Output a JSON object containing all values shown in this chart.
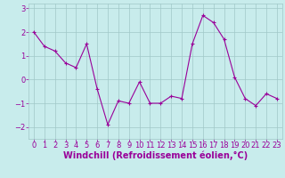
{
  "x": [
    0,
    1,
    2,
    3,
    4,
    5,
    6,
    7,
    8,
    9,
    10,
    11,
    12,
    13,
    14,
    15,
    16,
    17,
    18,
    19,
    20,
    21,
    22,
    23
  ],
  "y": [
    2.0,
    1.4,
    1.2,
    0.7,
    0.5,
    1.5,
    -0.4,
    -1.9,
    -0.9,
    -1.0,
    -0.1,
    -1.0,
    -1.0,
    -0.7,
    -0.8,
    1.5,
    2.7,
    2.4,
    1.7,
    0.1,
    -0.8,
    -1.1,
    -0.6,
    -0.8
  ],
  "line_color": "#990099",
  "marker": "+",
  "marker_color": "#990099",
  "bg_color": "#c8ecec",
  "grid_color": "#a0c8c8",
  "xlabel": "Windchill (Refroidissement éolien,°C)",
  "xlabel_color": "#990099",
  "xlabel_fontsize": 7,
  "tick_color": "#990099",
  "tick_fontsize": 6,
  "ylim": [
    -2.5,
    3.2
  ],
  "xlim": [
    -0.5,
    23.5
  ],
  "yticks": [
    -2,
    -1,
    0,
    1,
    2,
    3
  ],
  "xticks": [
    0,
    1,
    2,
    3,
    4,
    5,
    6,
    7,
    8,
    9,
    10,
    11,
    12,
    13,
    14,
    15,
    16,
    17,
    18,
    19,
    20,
    21,
    22,
    23
  ]
}
